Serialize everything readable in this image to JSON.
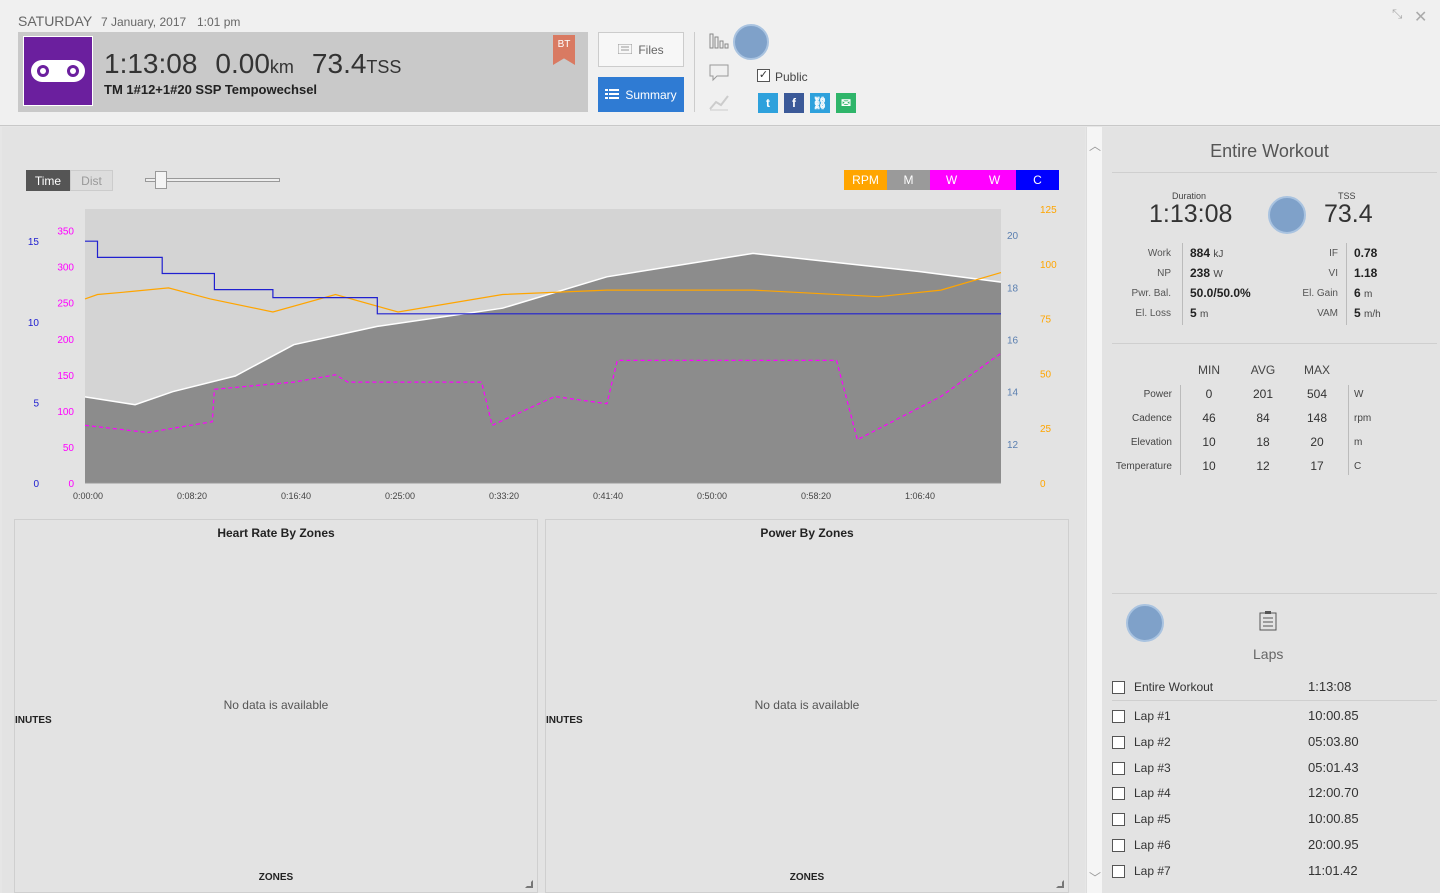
{
  "header": {
    "day": "SATURDAY",
    "date": "7 January, 2017",
    "time": "1:01 pm",
    "duration": "1:13:08",
    "distance": "0.00",
    "distance_unit": "km",
    "tss": "73.4",
    "tss_unit": "TSS",
    "workout_title": "TM 1#12+1#20 SSP Tempowechsel",
    "badge": "BT",
    "files_label": "Files",
    "summary_label": "Summary",
    "public_label": "Public",
    "public_checked": "✓",
    "share_icons": [
      "twitter-icon",
      "facebook-icon",
      "link-icon",
      "email-icon"
    ],
    "share_glyphs": [
      "t",
      "f",
      "⛓",
      "✉"
    ],
    "window_icons": [
      "⤡",
      "✕"
    ]
  },
  "chart_controls": {
    "time_label": "Time",
    "dist_label": "Dist",
    "legend": [
      {
        "label": "RPM",
        "color": "#ffa500"
      },
      {
        "label": "M",
        "color": "#9a9a9a"
      },
      {
        "label": "W",
        "color": "#ff00ff"
      },
      {
        "label": "W",
        "color": "#ff00ff"
      },
      {
        "label": "C",
        "color": "#0000ff"
      }
    ]
  },
  "chart_data": {
    "type": "line",
    "x_ticks": [
      "0:00:00",
      "0:08:20",
      "0:16:40",
      "0:25:00",
      "0:33:20",
      "0:41:40",
      "0:50:00",
      "0:58:20",
      "1:06:40"
    ],
    "x_range_seconds": [
      0,
      4388
    ],
    "axes": {
      "temperature_c": {
        "ticks": [
          "0",
          "5",
          "10",
          "15"
        ],
        "range": [
          0,
          17
        ],
        "color": "#2020d0"
      },
      "power_w": {
        "ticks": [
          "0",
          "50",
          "100",
          "150",
          "200",
          "250",
          "300",
          "350"
        ],
        "range": [
          0,
          380
        ],
        "color": "#ff00ff"
      },
      "elevation_m": {
        "ticks": [
          "12",
          "14",
          "16",
          "18",
          "20"
        ],
        "range": [
          10.5,
          21
        ],
        "color": "#5a7fb0"
      },
      "cadence_rpm": {
        "ticks": [
          "0",
          "25",
          "50",
          "75",
          "100",
          "125"
        ],
        "range": [
          0,
          125
        ],
        "color": "#ffa500"
      }
    },
    "series": [
      {
        "name": "Temperature",
        "color": "#2020d0",
        "points": [
          [
            0,
            15
          ],
          [
            60,
            15
          ],
          [
            60,
            14
          ],
          [
            370,
            14
          ],
          [
            370,
            13
          ],
          [
            620,
            13
          ],
          [
            620,
            12
          ],
          [
            900,
            12
          ],
          [
            900,
            11.5
          ],
          [
            1400,
            11.5
          ],
          [
            1400,
            10.5
          ],
          [
            4388,
            10.5
          ]
        ]
      },
      {
        "name": "Elevation",
        "color": "#8c8c8c",
        "points": [
          [
            0,
            13.8
          ],
          [
            240,
            13.5
          ],
          [
            420,
            14
          ],
          [
            720,
            14.6
          ],
          [
            1000,
            15.8
          ],
          [
            1400,
            16.5
          ],
          [
            2000,
            17.2
          ],
          [
            2500,
            18.4
          ],
          [
            3200,
            19.3
          ],
          [
            4000,
            18.6
          ],
          [
            4388,
            18.2
          ]
        ]
      },
      {
        "name": "Cadence",
        "color": "#ffa500",
        "points": [
          [
            0,
            84
          ],
          [
            60,
            86
          ],
          [
            180,
            87
          ],
          [
            400,
            89
          ],
          [
            600,
            84
          ],
          [
            900,
            78
          ],
          [
            1200,
            86
          ],
          [
            1500,
            78
          ],
          [
            2000,
            86
          ],
          [
            2500,
            88
          ],
          [
            3200,
            88
          ],
          [
            3800,
            85
          ],
          [
            4100,
            88
          ],
          [
            4388,
            96
          ]
        ]
      },
      {
        "name": "Power avg",
        "color": "#ff00ff",
        "points": [
          [
            0,
            80
          ],
          [
            300,
            70
          ],
          [
            610,
            85
          ],
          [
            620,
            130
          ],
          [
            1000,
            140
          ],
          [
            1200,
            150
          ],
          [
            1260,
            140
          ],
          [
            1900,
            140
          ],
          [
            1950,
            80
          ],
          [
            2250,
            120
          ],
          [
            2500,
            110
          ],
          [
            2550,
            170
          ],
          [
            3600,
            170
          ],
          [
            3700,
            60
          ],
          [
            4100,
            120
          ],
          [
            4388,
            180
          ]
        ]
      }
    ]
  },
  "panels": [
    {
      "title": "Heart Rate By Zones",
      "empty": "No data is available",
      "ylabel": "INUTES",
      "xlabel": "ZONES"
    },
    {
      "title": "Power By Zones",
      "empty": "No data is available",
      "ylabel": "INUTES",
      "xlabel": "ZONES"
    }
  ],
  "right_panel": {
    "title": "Entire Workout",
    "duration_label": "Duration",
    "duration": "1:13:08",
    "tss_label": "TSS",
    "tss": "73.4",
    "left_metrics": [
      {
        "label": "Work",
        "value": "884",
        "unit": "kJ"
      },
      {
        "label": "NP",
        "value": "238",
        "unit": "W"
      },
      {
        "label": "Pwr. Bal.",
        "value": "50.0/50.0%",
        "unit": ""
      },
      {
        "label": "El. Loss",
        "value": "5",
        "unit": "m"
      }
    ],
    "right_metrics": [
      {
        "label": "IF",
        "value": "0.78",
        "unit": ""
      },
      {
        "label": "VI",
        "value": "1.18",
        "unit": ""
      },
      {
        "label": "El. Gain",
        "value": "6",
        "unit": "m"
      },
      {
        "label": "VAM",
        "value": "5",
        "unit": "m/h"
      }
    ],
    "minmax_headers": [
      "MIN",
      "AVG",
      "MAX"
    ],
    "minmax_rows": [
      {
        "label": "Power",
        "min": "0",
        "avg": "201",
        "max": "504",
        "unit": "W"
      },
      {
        "label": "Cadence",
        "min": "46",
        "avg": "84",
        "max": "148",
        "unit": "rpm"
      },
      {
        "label": "Elevation",
        "min": "10",
        "avg": "18",
        "max": "20",
        "unit": "m"
      },
      {
        "label": "Temperature",
        "min": "10",
        "avg": "12",
        "max": "17",
        "unit": "C"
      }
    ],
    "laps_label": "Laps",
    "laps": [
      {
        "name": "Entire Workout",
        "time": "1:13:08"
      },
      {
        "name": "Lap #1",
        "time": "10:00.85"
      },
      {
        "name": "Lap #2",
        "time": "05:03.80"
      },
      {
        "name": "Lap #3",
        "time": "05:01.43"
      },
      {
        "name": "Lap #4",
        "time": "12:00.70"
      },
      {
        "name": "Lap #5",
        "time": "10:00.85"
      },
      {
        "name": "Lap #6",
        "time": "20:00.95"
      },
      {
        "name": "Lap #7",
        "time": "11:01.42"
      }
    ]
  }
}
